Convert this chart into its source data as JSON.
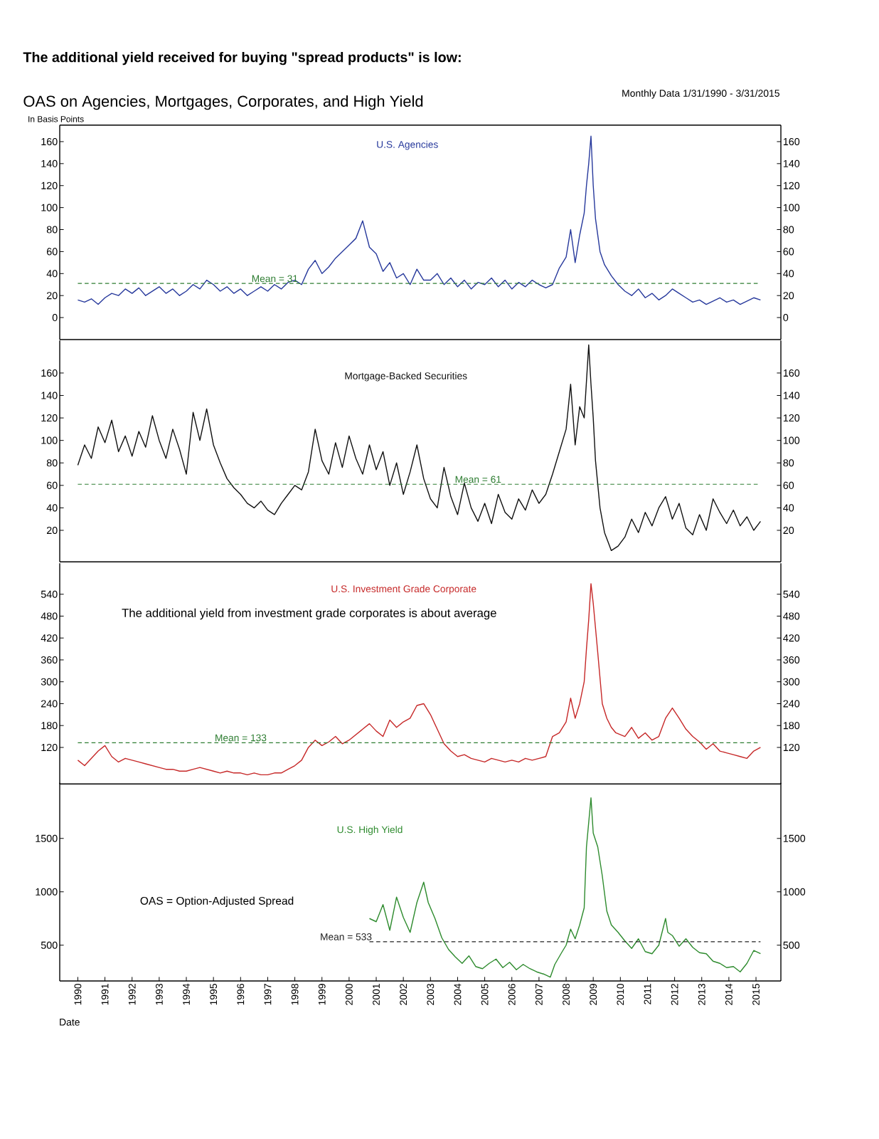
{
  "chart_data": [
    {
      "type": "line",
      "title": "The additional yield received for buying \"spread products\" is low:",
      "subtitle": "OAS on Agencies, Mortgages, Corporates, and High Yield",
      "ylabel": "In Basis Points",
      "annotations": [
        "Monthly Data 1/31/1990 - 3/31/2015"
      ],
      "x": [
        "1990-01",
        "1990-04",
        "1990-07",
        "1990-10",
        "1991-01",
        "1991-04",
        "1991-07",
        "1991-10",
        "1992-01",
        "1992-04",
        "1992-07",
        "1992-10",
        "1993-01",
        "1993-04",
        "1993-07",
        "1993-10",
        "1994-01",
        "1994-04",
        "1994-07",
        "1994-10",
        "1995-01",
        "1995-04",
        "1995-07",
        "1995-10",
        "1996-01",
        "1996-04",
        "1996-07",
        "1996-10",
        "1997-01",
        "1997-04",
        "1997-07",
        "1997-10",
        "1998-01",
        "1998-04",
        "1998-07",
        "1998-10",
        "1999-01",
        "1999-04",
        "1999-07",
        "1999-10",
        "2000-01",
        "2000-04",
        "2000-07",
        "2000-10",
        "2001-01",
        "2001-04",
        "2001-07",
        "2001-10",
        "2002-01",
        "2002-04",
        "2002-07",
        "2002-10",
        "2003-01",
        "2003-04",
        "2003-07",
        "2003-10",
        "2004-01",
        "2004-04",
        "2004-07",
        "2004-10",
        "2005-01",
        "2005-04",
        "2005-07",
        "2005-10",
        "2006-01",
        "2006-04",
        "2006-07",
        "2006-10",
        "2007-01",
        "2007-04",
        "2007-07",
        "2007-10",
        "2008-01",
        "2008-03",
        "2008-05",
        "2008-07",
        "2008-09",
        "2008-10",
        "2008-11",
        "2008-12",
        "2009-01",
        "2009-02",
        "2009-03",
        "2009-04",
        "2009-06",
        "2009-09",
        "2009-12",
        "2010-03",
        "2010-06",
        "2010-09",
        "2010-12",
        "2011-03",
        "2011-06",
        "2011-09",
        "2011-12",
        "2012-03",
        "2012-06",
        "2012-09",
        "2012-12",
        "2013-03",
        "2013-06",
        "2013-09",
        "2013-12",
        "2014-03",
        "2014-06",
        "2014-09",
        "2014-12",
        "2015-03"
      ],
      "series": [
        {
          "name": "U.S. Agencies",
          "color": "#27399c",
          "values": [
            16,
            14,
            17,
            12,
            18,
            22,
            20,
            26,
            22,
            27,
            20,
            24,
            28,
            22,
            26,
            20,
            24,
            30,
            26,
            34,
            30,
            24,
            28,
            22,
            26,
            20,
            24,
            28,
            24,
            30,
            26,
            32,
            34,
            30,
            44,
            52,
            40,
            46,
            54,
            60,
            66,
            72,
            88,
            64,
            58,
            42,
            50,
            36,
            40,
            30,
            44,
            34,
            34,
            40,
            30,
            36,
            28,
            34,
            26,
            32,
            30,
            36,
            28,
            34,
            26,
            32,
            28,
            34,
            30,
            27,
            30,
            45,
            55,
            80,
            50,
            75,
            95,
            120,
            140,
            165,
            120,
            90,
            75,
            60,
            48,
            38,
            30,
            24,
            20,
            26,
            18,
            22,
            16,
            20,
            26,
            22,
            18,
            14,
            16,
            12,
            15,
            18,
            14,
            16,
            12,
            15,
            18,
            16
          ]
        }
      ],
      "xlim": [
        "1989-05",
        "2015-12"
      ],
      "ylim": [
        -20,
        175
      ],
      "yticks": [
        0,
        20,
        40,
        60,
        80,
        100,
        120,
        140,
        160
      ],
      "y2lim": [
        -20,
        175
      ],
      "y2ticks": [
        0,
        20,
        40,
        60,
        80,
        100,
        120,
        140,
        160
      ],
      "ref_lines": [
        {
          "axis": "y",
          "value": 31,
          "label": "Mean = 31",
          "color": "#2e7d32",
          "line_style": "dashed"
        }
      ],
      "tick_labels": "y"
    },
    {
      "type": "line",
      "x": [
        "1990-01",
        "1990-04",
        "1990-07",
        "1990-10",
        "1991-01",
        "1991-04",
        "1991-07",
        "1991-10",
        "1992-01",
        "1992-04",
        "1992-07",
        "1992-10",
        "1993-01",
        "1993-04",
        "1993-07",
        "1993-10",
        "1994-01",
        "1994-04",
        "1994-07",
        "1994-10",
        "1995-01",
        "1995-04",
        "1995-07",
        "1995-10",
        "1996-01",
        "1996-04",
        "1996-07",
        "1996-10",
        "1997-01",
        "1997-04",
        "1997-07",
        "1997-10",
        "1998-01",
        "1998-04",
        "1998-07",
        "1998-10",
        "1999-01",
        "1999-04",
        "1999-07",
        "1999-10",
        "2000-01",
        "2000-04",
        "2000-07",
        "2000-10",
        "2001-01",
        "2001-04",
        "2001-07",
        "2001-10",
        "2002-01",
        "2002-04",
        "2002-07",
        "2002-10",
        "2003-01",
        "2003-04",
        "2003-07",
        "2003-10",
        "2004-01",
        "2004-04",
        "2004-07",
        "2004-10",
        "2005-01",
        "2005-04",
        "2005-07",
        "2005-10",
        "2006-01",
        "2006-04",
        "2006-07",
        "2006-10",
        "2007-01",
        "2007-04",
        "2007-07",
        "2007-10",
        "2008-01",
        "2008-03",
        "2008-05",
        "2008-07",
        "2008-09",
        "2008-11",
        "2008-12",
        "2009-01",
        "2009-02",
        "2009-04",
        "2009-06",
        "2009-09",
        "2009-12",
        "2010-03",
        "2010-06",
        "2010-09",
        "2010-12",
        "2011-03",
        "2011-06",
        "2011-09",
        "2011-12",
        "2012-03",
        "2012-06",
        "2012-09",
        "2012-12",
        "2013-03",
        "2013-06",
        "2013-09",
        "2013-12",
        "2014-03",
        "2014-06",
        "2014-09",
        "2014-12",
        "2015-03"
      ],
      "series": [
        {
          "name": "Mortgage-Backed Securities",
          "color": "#111111",
          "values": [
            78,
            96,
            84,
            112,
            98,
            118,
            90,
            104,
            86,
            108,
            94,
            122,
            100,
            84,
            110,
            92,
            70,
            125,
            100,
            128,
            96,
            80,
            66,
            58,
            52,
            44,
            40,
            46,
            38,
            34,
            44,
            52,
            60,
            56,
            72,
            110,
            82,
            70,
            98,
            76,
            104,
            84,
            70,
            96,
            74,
            90,
            60,
            80,
            52,
            72,
            96,
            66,
            48,
            40,
            76,
            50,
            34,
            62,
            40,
            28,
            44,
            26,
            52,
            36,
            30,
            48,
            38,
            56,
            44,
            52,
            70,
            90,
            110,
            150,
            96,
            130,
            120,
            185,
            150,
            120,
            82,
            40,
            18,
            2,
            6,
            14,
            30,
            18,
            36,
            24,
            40,
            50,
            30,
            44,
            22,
            16,
            34,
            20,
            48,
            36,
            26,
            38,
            24,
            32,
            20,
            28
          ]
        }
      ],
      "xlim": [
        "1989-05",
        "2015-12"
      ],
      "ylim": [
        -8,
        189
      ],
      "yticks": [
        20,
        40,
        60,
        80,
        100,
        120,
        140,
        160
      ],
      "y2lim": [
        -8,
        189
      ],
      "y2ticks": [
        20,
        40,
        60,
        80,
        100,
        120,
        140,
        160
      ],
      "ref_lines": [
        {
          "axis": "y",
          "value": 61,
          "label": "Mean = 61",
          "color": "#2e7d32",
          "line_style": "dashed"
        }
      ],
      "tick_labels": "y"
    },
    {
      "type": "line",
      "annotations": [
        "The additional yield from investment grade corporates is about average"
      ],
      "x": [
        "1990-01",
        "1990-04",
        "1990-07",
        "1990-10",
        "1991-01",
        "1991-04",
        "1991-07",
        "1991-10",
        "1992-01",
        "1992-04",
        "1992-07",
        "1992-10",
        "1993-01",
        "1993-04",
        "1993-07",
        "1993-10",
        "1994-01",
        "1994-04",
        "1994-07",
        "1994-10",
        "1995-01",
        "1995-04",
        "1995-07",
        "1995-10",
        "1996-01",
        "1996-04",
        "1996-07",
        "1996-10",
        "1997-01",
        "1997-04",
        "1997-07",
        "1997-10",
        "1998-01",
        "1998-04",
        "1998-07",
        "1998-10",
        "1999-01",
        "1999-04",
        "1999-07",
        "1999-10",
        "2000-01",
        "2000-04",
        "2000-07",
        "2000-10",
        "2001-01",
        "2001-04",
        "2001-07",
        "2001-10",
        "2002-01",
        "2002-04",
        "2002-07",
        "2002-10",
        "2003-01",
        "2003-04",
        "2003-07",
        "2003-10",
        "2004-01",
        "2004-04",
        "2004-07",
        "2004-10",
        "2005-01",
        "2005-04",
        "2005-07",
        "2005-10",
        "2006-01",
        "2006-04",
        "2006-07",
        "2006-10",
        "2007-01",
        "2007-04",
        "2007-07",
        "2007-10",
        "2008-01",
        "2008-03",
        "2008-05",
        "2008-07",
        "2008-09",
        "2008-10",
        "2008-11",
        "2008-12",
        "2009-01",
        "2009-03",
        "2009-05",
        "2009-07",
        "2009-09",
        "2009-11",
        "2010-03",
        "2010-06",
        "2010-09",
        "2010-12",
        "2011-03",
        "2011-06",
        "2011-09",
        "2011-12",
        "2012-03",
        "2012-06",
        "2012-09",
        "2012-12",
        "2013-03",
        "2013-06",
        "2013-09",
        "2013-12",
        "2014-03",
        "2014-06",
        "2014-09",
        "2014-12",
        "2015-03"
      ],
      "series": [
        {
          "name": "U.S. Investment Grade Corporate",
          "color": "#c62828",
          "values": [
            85,
            70,
            90,
            110,
            125,
            95,
            80,
            90,
            85,
            80,
            75,
            70,
            65,
            60,
            60,
            55,
            55,
            60,
            65,
            60,
            55,
            50,
            55,
            50,
            50,
            45,
            50,
            45,
            45,
            50,
            50,
            60,
            70,
            85,
            120,
            140,
            125,
            135,
            150,
            130,
            140,
            155,
            170,
            185,
            165,
            150,
            195,
            175,
            190,
            200,
            235,
            240,
            210,
            170,
            130,
            110,
            95,
            100,
            90,
            85,
            80,
            90,
            85,
            80,
            85,
            80,
            90,
            85,
            90,
            95,
            150,
            160,
            190,
            255,
            200,
            240,
            300,
            390,
            470,
            569,
            515,
            380,
            240,
            200,
            175,
            160,
            150,
            175,
            145,
            160,
            140,
            150,
            200,
            228,
            200,
            170,
            150,
            135,
            115,
            130,
            110,
            105,
            100,
            95,
            90,
            110,
            120
          ]
        }
      ],
      "xlim": [
        "1989-05",
        "2015-12"
      ],
      "ylim": [
        20,
        625
      ],
      "yticks": [
        120,
        180,
        240,
        300,
        360,
        420,
        480,
        540
      ],
      "y2lim": [
        20,
        625
      ],
      "y2ticks": [
        120,
        180,
        240,
        300,
        360,
        420,
        480,
        540
      ],
      "ref_lines": [
        {
          "axis": "y",
          "value": 133,
          "label": "Mean = 133",
          "color": "#2e7d32",
          "line_style": "dashed"
        }
      ],
      "tick_labels": "y"
    },
    {
      "type": "line",
      "xlabel": "Date",
      "annotations": [
        "OAS = Option-Adjusted Spread"
      ],
      "x": [
        "2000-10",
        "2001-01",
        "2001-04",
        "2001-07",
        "2001-10",
        "2002-01",
        "2002-04",
        "2002-07",
        "2002-10",
        "2002-12",
        "2003-03",
        "2003-06",
        "2003-09",
        "2003-12",
        "2004-03",
        "2004-06",
        "2004-09",
        "2004-12",
        "2005-03",
        "2005-06",
        "2005-09",
        "2005-12",
        "2006-03",
        "2006-06",
        "2006-09",
        "2006-12",
        "2007-03",
        "2007-06",
        "2007-08",
        "2007-11",
        "2008-01",
        "2008-03",
        "2008-05",
        "2008-07",
        "2008-09",
        "2008-10",
        "2008-11",
        "2008-12",
        "2009-01",
        "2009-03",
        "2009-05",
        "2009-07",
        "2009-09",
        "2009-12",
        "2010-03",
        "2010-06",
        "2010-09",
        "2010-12",
        "2011-03",
        "2011-06",
        "2011-09",
        "2011-10",
        "2011-12",
        "2012-03",
        "2012-06",
        "2012-09",
        "2012-12",
        "2013-03",
        "2013-06",
        "2013-09",
        "2013-12",
        "2014-03",
        "2014-06",
        "2014-09",
        "2014-12",
        "2015-03"
      ],
      "series": [
        {
          "name": "U.S. High Yield",
          "color": "#2e8b2e",
          "values": [
            750,
            720,
            880,
            640,
            950,
            760,
            620,
            900,
            1090,
            900,
            750,
            570,
            460,
            390,
            330,
            400,
            300,
            280,
            330,
            370,
            290,
            340,
            270,
            320,
            280,
            250,
            230,
            200,
            320,
            430,
            500,
            650,
            560,
            690,
            850,
            1420,
            1650,
            1880,
            1550,
            1420,
            1150,
            820,
            690,
            620,
            540,
            470,
            560,
            440,
            420,
            500,
            750,
            620,
            590,
            490,
            560,
            480,
            430,
            420,
            350,
            330,
            290,
            300,
            250,
            330,
            450,
            420
          ]
        }
      ],
      "xlim": [
        "1989-05",
        "2015-12"
      ],
      "xticks": [
        "1990",
        "1991",
        "1992",
        "1993",
        "1994",
        "1995",
        "1996",
        "1997",
        "1998",
        "1999",
        "2000",
        "2001",
        "2002",
        "2003",
        "2004",
        "2005",
        "2006",
        "2007",
        "2008",
        "2009",
        "2010",
        "2011",
        "2012",
        "2013",
        "2014",
        "2015"
      ],
      "ylim": [
        165,
        2020
      ],
      "yticks": [
        500,
        1000,
        1500
      ],
      "y2lim": [
        165,
        2020
      ],
      "y2ticks": [
        500,
        1000,
        1500
      ],
      "ref_lines": [
        {
          "axis": "y",
          "value": 533,
          "label": "Mean = 533",
          "color": "#222222",
          "line_style": "dashed"
        }
      ]
    }
  ]
}
